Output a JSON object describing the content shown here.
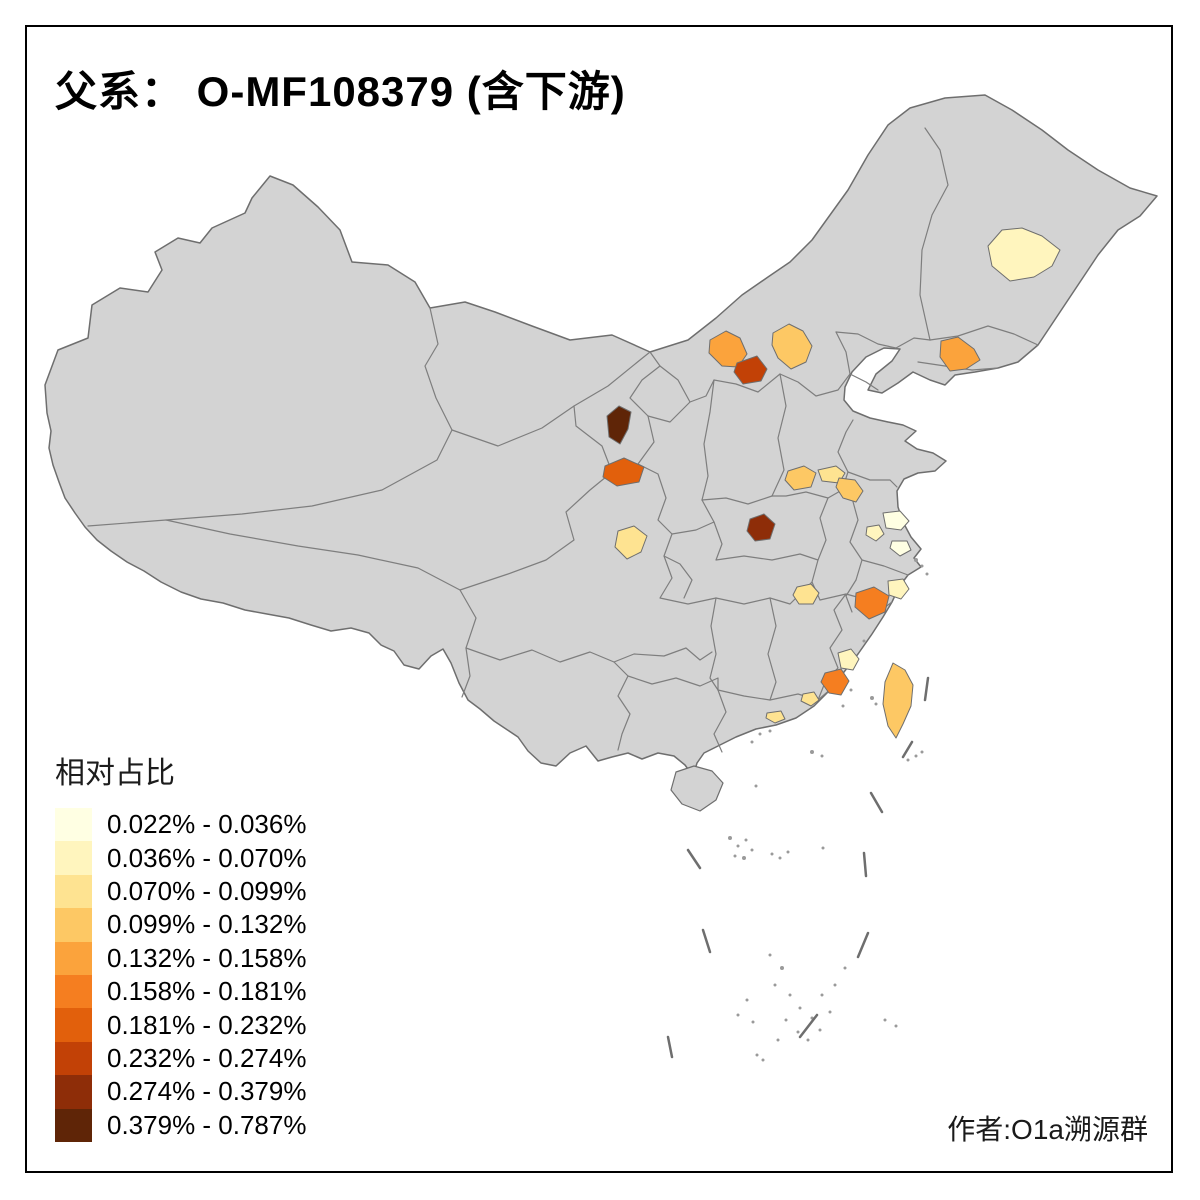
{
  "frame": {
    "title": "父系： O-MF108379 (含下游)",
    "credit": "作者:O1a溯源群"
  },
  "legend": {
    "title": "相对占比",
    "classes": [
      {
        "label": "0.022% - 0.036%",
        "color": "#FFFFE3"
      },
      {
        "label": "0.036% - 0.070%",
        "color": "#FFF5BE"
      },
      {
        "label": "0.070% - 0.099%",
        "color": "#FEE391"
      },
      {
        "label": "0.099% - 0.132%",
        "color": "#FDC864"
      },
      {
        "label": "0.132% - 0.158%",
        "color": "#FBA33C"
      },
      {
        "label": "0.158% - 0.181%",
        "color": "#F57E20"
      },
      {
        "label": "0.181% - 0.232%",
        "color": "#E2600C"
      },
      {
        "label": "0.232% - 0.274%",
        "color": "#C24106"
      },
      {
        "label": "0.274% - 0.379%",
        "color": "#8E2D08"
      },
      {
        "label": "0.379% - 0.787%",
        "color": "#5F2507"
      }
    ]
  },
  "map": {
    "base_fill": "#D3D3D3",
    "border_color": "#6E6E6E",
    "background": "#FFFFFF",
    "regions": {
      "region-northeast": 2,
      "region-liaoning-coast": 5,
      "region-inner-mongolia-west": 5,
      "region-inner-mongolia-center": 8,
      "region-hebei-north": 4,
      "region-gansu-north": 10,
      "region-gansu-south": 7,
      "region-henan-southwest": 9,
      "region-henan-east": 4,
      "region-huaibei": 3,
      "region-jiangsu-northwest": 4,
      "region-jiangsu-central-a": 1,
      "region-jiangsu-central-b": 2,
      "region-jiangsu-south": 1,
      "region-sichuan-chengdu": 3,
      "region-jiangxi-north": 3,
      "region-fujian-north": 6,
      "region-zhejiang-south": 2,
      "region-fujian-coast": 2,
      "region-fujian-south": 6,
      "region-guangdong-east": 3,
      "region-guangdong-coast": 3,
      "region-taiwan": 4
    }
  }
}
